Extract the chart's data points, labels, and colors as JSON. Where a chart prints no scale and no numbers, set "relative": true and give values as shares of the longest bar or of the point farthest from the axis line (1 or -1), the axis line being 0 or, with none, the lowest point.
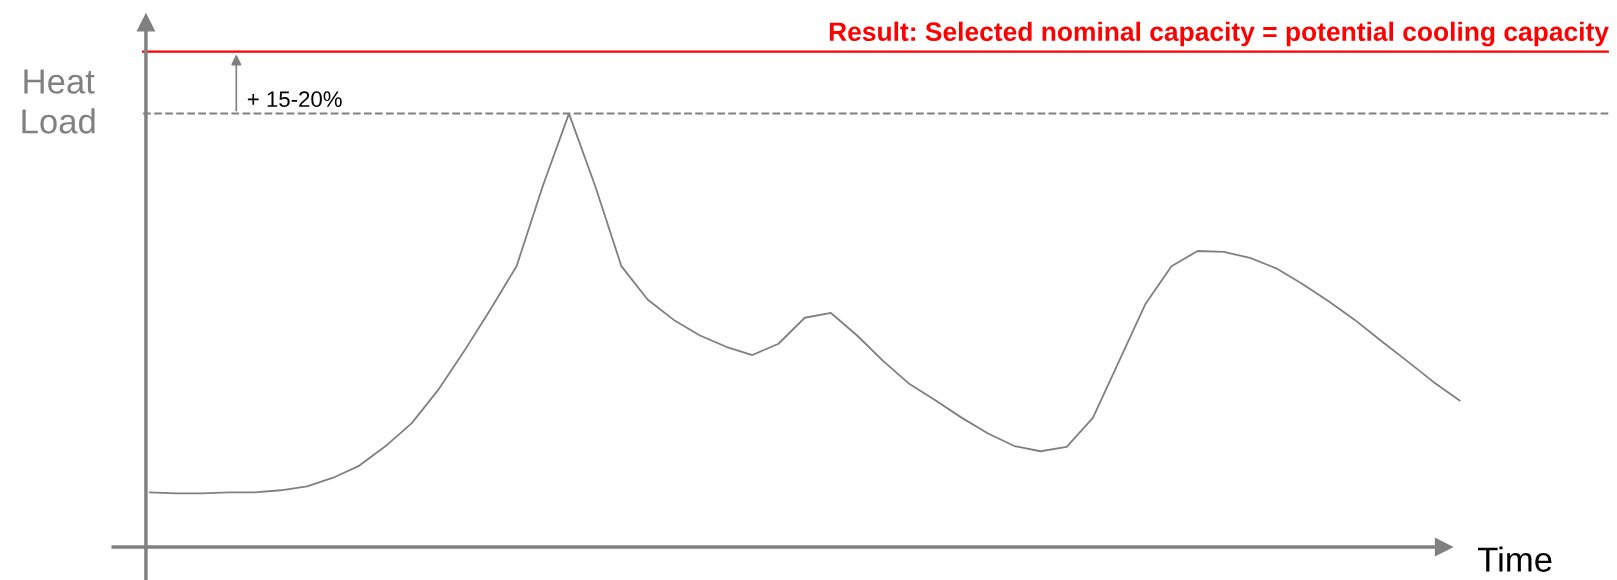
{
  "chart_data": {
    "type": "line",
    "relative": true,
    "xlabel": "Time",
    "ylabel": "Heat\nLoad",
    "categories": [
      null,
      null,
      null,
      null,
      null,
      null,
      null,
      null,
      null,
      null,
      null,
      null,
      null,
      null,
      null,
      null,
      null,
      null,
      null,
      null,
      null,
      null,
      null,
      null,
      null,
      null,
      null,
      null,
      null,
      null,
      null,
      null,
      null,
      null,
      null,
      null,
      null,
      null,
      null,
      null,
      null,
      null,
      null,
      null,
      null,
      null,
      null,
      null,
      null,
      null,
      null
    ],
    "series": [
      {
        "color": "#808080",
        "values": [
          0.126,
          0.124,
          0.124,
          0.126,
          0.126,
          0.131,
          0.14,
          0.16,
          0.188,
          0.233,
          0.286,
          0.362,
          0.452,
          0.548,
          0.648,
          0.833,
          1.0,
          0.833,
          0.648,
          0.571,
          0.524,
          0.488,
          0.462,
          0.443,
          0.469,
          0.529,
          0.54,
          0.488,
          0.429,
          0.376,
          0.338,
          0.298,
          0.262,
          0.233,
          0.221,
          0.231,
          0.298,
          0.429,
          0.56,
          0.648,
          0.683,
          0.681,
          0.667,
          0.643,
          0.607,
          0.567,
          0.524,
          0.476,
          0.429,
          0.381,
          0.338
        ]
      }
    ],
    "ref_lines": [
      {
        "axis": "y",
        "value": 1.143,
        "label": "Result: Selected nominal capacity = potential cooling capacity",
        "color": "#ff0000",
        "line_style": "solid"
      },
      {
        "axis": "y",
        "value": 1.0,
        "color": "#808080",
        "line_style": "dashed"
      }
    ],
    "annotations": [
      "+ 15-20%"
    ],
    "legend": false,
    "marker": "none",
    "line_style": "solid"
  }
}
